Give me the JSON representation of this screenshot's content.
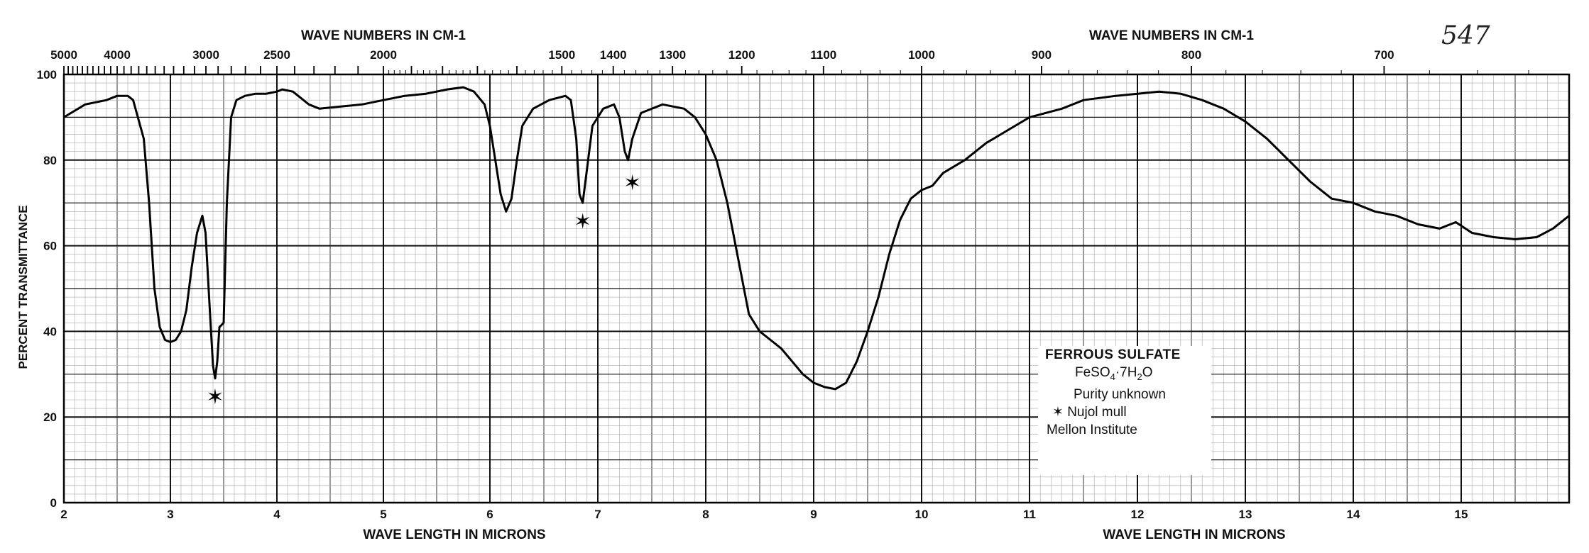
{
  "page": {
    "top_axis_title_left": "WAVE  NUMBERS  IN  CM-1",
    "top_axis_title_right": "WAVE  NUMBERS  IN  CM-1",
    "bottom_axis_title_left": "WAVE  LENGTH  IN  MICRONS",
    "bottom_axis_title_right": "WAVE  LENGTH  IN  MICRONS",
    "y_axis_title": "PERCENT  TRANSMITTANCE",
    "handwritten_number": "547"
  },
  "legend": {
    "compound": "FERROUS  SULFATE",
    "formula_base": "FeSO",
    "formula_sub1": "4",
    "formula_mid": "·7H",
    "formula_sub2": "2",
    "formula_end": "O",
    "purity": "Purity unknown",
    "mull_note": "✶ Nujol mull",
    "institute": "Mellon Institute"
  },
  "chart_data": {
    "type": "line",
    "xlabel": "WAVE  LENGTH  IN  MICRONS",
    "ylabel": "PERCENT  TRANSMITTANCE",
    "x2label": "WAVE  NUMBERS  IN  CM-1",
    "xlim": [
      2,
      16
    ],
    "ylim": [
      0,
      100
    ],
    "x_ticks": [
      "2",
      "3",
      "4",
      "5",
      "6",
      "7",
      "8",
      "9",
      "10",
      "11",
      "12",
      "13",
      "14",
      "15"
    ],
    "y_ticks": [
      "0",
      "20",
      "40",
      "60",
      "80",
      "100"
    ],
    "top_ticks": [
      {
        "label": "5000",
        "wavenumber": 5000
      },
      {
        "label": "4000",
        "wavenumber": 4000
      },
      {
        "label": "3000",
        "wavenumber": 3000
      },
      {
        "label": "2500",
        "wavenumber": 2500
      },
      {
        "label": "2000",
        "wavenumber": 2000
      },
      {
        "label": "1500",
        "wavenumber": 1500
      },
      {
        "label": "1400",
        "wavenumber": 1400
      },
      {
        "label": "1300",
        "wavenumber": 1300
      },
      {
        "label": "1200",
        "wavenumber": 1200
      },
      {
        "label": "1100",
        "wavenumber": 1100
      },
      {
        "label": "1000",
        "wavenumber": 1000
      },
      {
        "label": "900",
        "wavenumber": 900
      },
      {
        "label": "800",
        "wavenumber": 800
      },
      {
        "label": "700",
        "wavenumber": 700
      }
    ],
    "grid": true,
    "series": [
      {
        "points": [
          [
            2.0,
            90
          ],
          [
            2.2,
            93
          ],
          [
            2.4,
            94
          ],
          [
            2.5,
            95
          ],
          [
            2.6,
            95
          ],
          [
            2.65,
            94
          ],
          [
            2.75,
            85
          ],
          [
            2.8,
            70
          ],
          [
            2.85,
            50
          ],
          [
            2.9,
            41
          ],
          [
            2.95,
            38
          ],
          [
            3.0,
            37.5
          ],
          [
            3.05,
            38
          ],
          [
            3.1,
            40
          ],
          [
            3.15,
            45
          ],
          [
            3.2,
            55
          ],
          [
            3.25,
            63
          ],
          [
            3.3,
            67
          ],
          [
            3.33,
            63
          ],
          [
            3.37,
            45
          ],
          [
            3.4,
            32
          ],
          [
            3.42,
            29
          ],
          [
            3.44,
            33
          ],
          [
            3.46,
            41
          ],
          [
            3.5,
            42
          ],
          [
            3.53,
            70
          ],
          [
            3.57,
            90
          ],
          [
            3.62,
            94
          ],
          [
            3.7,
            95
          ],
          [
            3.8,
            95.5
          ],
          [
            3.9,
            95.5
          ],
          [
            4.0,
            96
          ],
          [
            4.05,
            96.5
          ],
          [
            4.15,
            96
          ],
          [
            4.3,
            93
          ],
          [
            4.4,
            92
          ],
          [
            4.6,
            92.5
          ],
          [
            4.8,
            93
          ],
          [
            5.0,
            94
          ],
          [
            5.2,
            95
          ],
          [
            5.4,
            95.5
          ],
          [
            5.6,
            96.5
          ],
          [
            5.75,
            97
          ],
          [
            5.85,
            96
          ],
          [
            5.95,
            93
          ],
          [
            6.0,
            88
          ],
          [
            6.05,
            80
          ],
          [
            6.1,
            72
          ],
          [
            6.15,
            68
          ],
          [
            6.2,
            71
          ],
          [
            6.25,
            80
          ],
          [
            6.3,
            88
          ],
          [
            6.4,
            92
          ],
          [
            6.55,
            94
          ],
          [
            6.7,
            95
          ],
          [
            6.75,
            94
          ],
          [
            6.8,
            85
          ],
          [
            6.83,
            72
          ],
          [
            6.86,
            70
          ],
          [
            6.9,
            78
          ],
          [
            6.95,
            88
          ],
          [
            7.05,
            92
          ],
          [
            7.15,
            93
          ],
          [
            7.2,
            90
          ],
          [
            7.25,
            82
          ],
          [
            7.28,
            80
          ],
          [
            7.32,
            85
          ],
          [
            7.4,
            91
          ],
          [
            7.6,
            93
          ],
          [
            7.8,
            92
          ],
          [
            7.9,
            90
          ],
          [
            8.0,
            86
          ],
          [
            8.1,
            80
          ],
          [
            8.2,
            70
          ],
          [
            8.3,
            57
          ],
          [
            8.4,
            44
          ],
          [
            8.5,
            40
          ],
          [
            8.6,
            38
          ],
          [
            8.7,
            36
          ],
          [
            8.8,
            33
          ],
          [
            8.9,
            30
          ],
          [
            9.0,
            28
          ],
          [
            9.1,
            27
          ],
          [
            9.2,
            26.5
          ],
          [
            9.3,
            28
          ],
          [
            9.4,
            33
          ],
          [
            9.5,
            40
          ],
          [
            9.6,
            48
          ],
          [
            9.7,
            58
          ],
          [
            9.8,
            66
          ],
          [
            9.9,
            71
          ],
          [
            10.0,
            73
          ],
          [
            10.1,
            74
          ],
          [
            10.2,
            77
          ],
          [
            10.4,
            80
          ],
          [
            10.6,
            84
          ],
          [
            10.8,
            87
          ],
          [
            11.0,
            90
          ],
          [
            11.3,
            92
          ],
          [
            11.5,
            94
          ],
          [
            11.8,
            95
          ],
          [
            12.0,
            95.5
          ],
          [
            12.2,
            96
          ],
          [
            12.4,
            95.5
          ],
          [
            12.6,
            94
          ],
          [
            12.8,
            92
          ],
          [
            13.0,
            89
          ],
          [
            13.2,
            85
          ],
          [
            13.4,
            80
          ],
          [
            13.6,
            75
          ],
          [
            13.8,
            71
          ],
          [
            14.0,
            70
          ],
          [
            14.2,
            68
          ],
          [
            14.4,
            67
          ],
          [
            14.6,
            65
          ],
          [
            14.8,
            64
          ],
          [
            14.95,
            65.5
          ],
          [
            15.1,
            63
          ],
          [
            15.3,
            62
          ],
          [
            15.5,
            61.5
          ],
          [
            15.7,
            62
          ],
          [
            15.85,
            64
          ],
          [
            16.0,
            67
          ]
        ]
      }
    ],
    "annotations": [
      {
        "text": "✶",
        "x": 3.42,
        "y": 25
      },
      {
        "text": "✶",
        "x": 6.86,
        "y": 66
      },
      {
        "text": "✶",
        "x": 7.32,
        "y": 75
      }
    ]
  }
}
